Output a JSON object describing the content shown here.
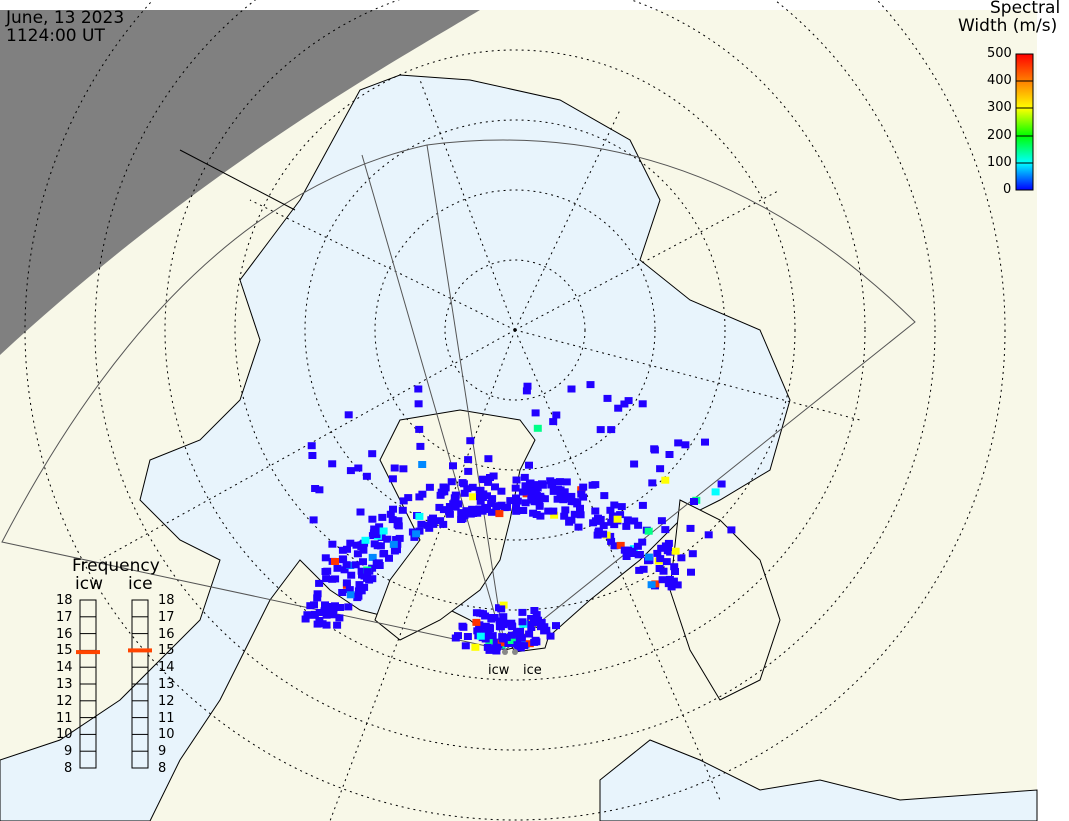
{
  "header": {
    "date": "June, 13 2023",
    "time": "1124:00 UT"
  },
  "colorbar": {
    "title_line1": "Spectral",
    "title_line2": "Width (m/s)",
    "ticks": [
      "500",
      "400",
      "300",
      "200",
      "100",
      "0"
    ],
    "range": [
      0,
      500
    ],
    "colors": [
      "#0000ff",
      "#00ffff",
      "#00ff00",
      "#ffff00",
      "#ff8000",
      "#ff0000"
    ]
  },
  "frequency_panel": {
    "title": "Frequency",
    "ticks": [
      "18",
      "17",
      "16",
      "15",
      "14",
      "13",
      "12",
      "11",
      "10",
      "9",
      "8"
    ],
    "radars": [
      {
        "name": "icw",
        "value_mhz": 14.9
      },
      {
        "name": "ice",
        "value_mhz": 15.0
      }
    ],
    "marker_color": "#ff4400"
  },
  "radar_sites": [
    "icw",
    "ice"
  ],
  "colors": {
    "land": "#f8f8e8",
    "ocean": "#e8f4fc",
    "night": "#808080",
    "scatter_dominant": "#2200ff"
  }
}
